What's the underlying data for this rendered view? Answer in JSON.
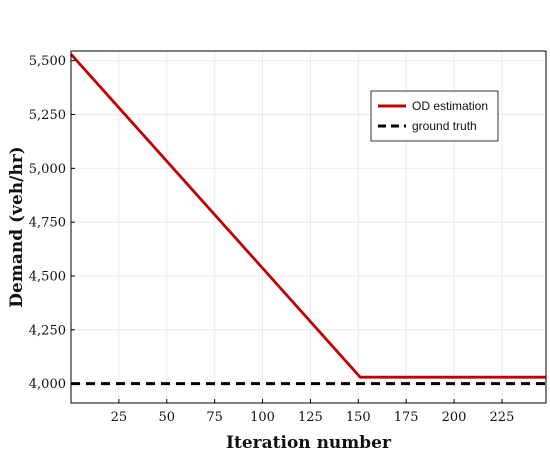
{
  "chart_data": {
    "type": "line",
    "title": "",
    "xlabel": "Iteration number",
    "ylabel": "Demand (veh/hr)",
    "xlim": [
      0,
      248
    ],
    "ylim": [
      3910,
      5545
    ],
    "x_ticks": [
      25,
      50,
      75,
      100,
      125,
      150,
      175,
      200,
      225
    ],
    "x_tick_labels": [
      "25",
      "50",
      "75",
      "100",
      "125",
      "150",
      "175",
      "200",
      "225"
    ],
    "y_ticks": [
      4000,
      4250,
      4500,
      4750,
      5000,
      5250,
      5500
    ],
    "y_tick_labels": [
      "4,000",
      "4,250",
      "4,500",
      "4,750",
      "5,000",
      "5,250",
      "5,500"
    ],
    "grid": true,
    "legend_position": "top-right",
    "series": [
      {
        "name": "OD estimation",
        "color": "#c00000",
        "style": "solid",
        "x": [
          0,
          151,
          152,
          248
        ],
        "y": [
          5530,
          4030,
          4030,
          4030
        ]
      },
      {
        "name": "ground truth",
        "color": "#000000",
        "style": "dashed",
        "x": [
          0,
          248
        ],
        "y": [
          4000,
          4000
        ]
      }
    ]
  }
}
